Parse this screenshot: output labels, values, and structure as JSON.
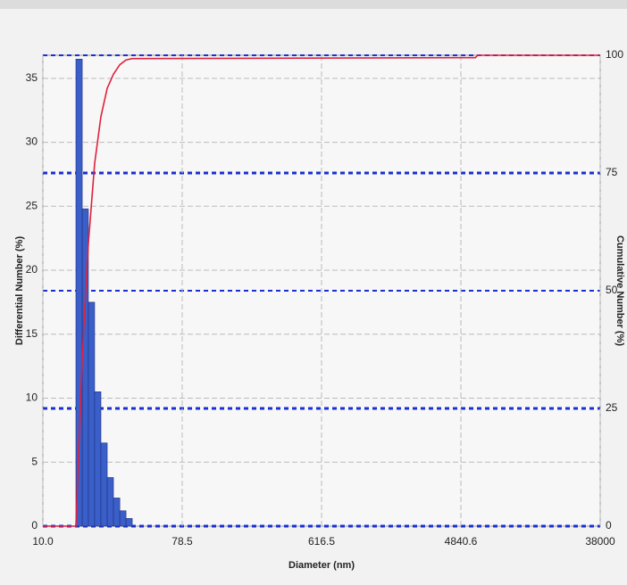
{
  "chart_data": {
    "type": "histogram",
    "xlabel": "Diameter (nm)",
    "ylabel": "Differential Number (%)",
    "y2label": "Cumulative Number (%)",
    "xscale": "log",
    "xlim": [
      10,
      38000
    ],
    "xticks": [
      {
        "value": 10,
        "label": "10.0"
      },
      78.5,
      616.5,
      4840.6,
      38000
    ],
    "ylim": [
      0,
      36.8
    ],
    "yticks": [
      0,
      5,
      10,
      15,
      20,
      25,
      30,
      35
    ],
    "y2lim": [
      0,
      100
    ],
    "y2ticks": [
      0,
      25,
      50,
      75,
      100
    ],
    "grid": true,
    "bins": [
      16.3,
      17.9,
      19.6,
      21.5,
      23.6,
      25.9,
      28.4,
      31.2,
      34.2,
      37.5
    ],
    "values": [
      36.5,
      24.8,
      17.5,
      10.5,
      6.5,
      3.8,
      2.2,
      1.2,
      0.6
    ],
    "color": "#3b5fc8",
    "line": {
      "axis": "y2",
      "color": "#e0203c",
      "x": [
        10,
        16.3,
        17.9,
        19.6,
        21.5,
        23.6,
        25.9,
        28.4,
        31.2,
        34.2,
        37.5,
        6000,
        6200,
        38000
      ],
      "values": [
        0,
        0,
        36,
        60,
        77,
        87,
        93,
        96,
        98,
        99,
        99.3,
        99.5,
        100,
        100
      ]
    }
  }
}
